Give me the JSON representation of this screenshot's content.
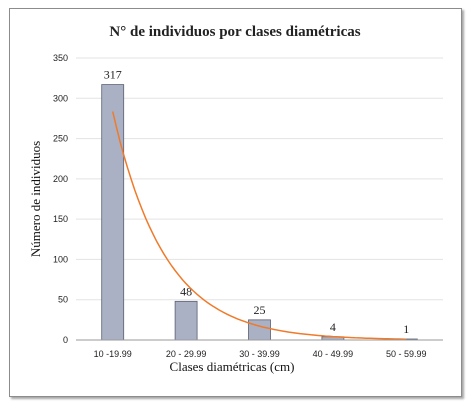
{
  "chart_data": {
    "type": "bar",
    "title": "N° de individuos por clases diamétricas",
    "xlabel": "Clases diamétricas (cm)",
    "ylabel": "Número de individuos",
    "categories": [
      "10 -19.99",
      "20 - 29.99",
      "30 - 39.99",
      "40 - 49.99",
      "50 - 59.99"
    ],
    "series": [
      {
        "values": [
          317,
          48,
          25,
          4,
          1
        ]
      }
    ],
    "data_labels": [
      "317",
      "48",
      "25",
      "4",
      "1"
    ],
    "ylim": [
      0,
      350
    ],
    "yticks": [
      0,
      50,
      100,
      150,
      200,
      250,
      300,
      350
    ],
    "grid": "horizontal",
    "trendline": {
      "type": "exponential"
    },
    "colors": {
      "bar": "#aab1c5",
      "bar_stroke": "#5a6070",
      "trend": "#f07a2a",
      "grid": "#e3e3e3"
    }
  }
}
